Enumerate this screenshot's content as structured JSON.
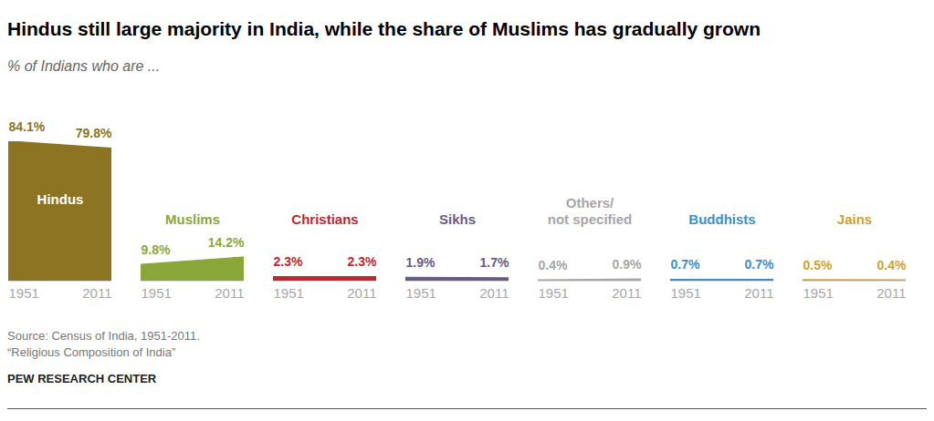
{
  "chart_data": {
    "type": "area",
    "title": "Hindus still large majority in India, while the share of Muslims has gradually grown",
    "subtitle": "% of Indians who are ...",
    "source": "Source: Census of India, 1951-2011.\n“Religious Composition of India”",
    "credit": "PEW RESEARCH CENTER",
    "x": [
      1951,
      2011
    ],
    "xlim": [
      1951,
      2011
    ],
    "xticks": [
      1951,
      2011
    ],
    "ylim": [
      0,
      84.1
    ],
    "yticks": [
      0
    ],
    "tick_labels": "x",
    "grid": false,
    "data_labels": true,
    "series": [
      {
        "name": "Hindus",
        "color": "#8c7423",
        "values": [
          84.1,
          79.8
        ],
        "value_labels": [
          "84.1%",
          "79.8%"
        ]
      },
      {
        "name": "Muslims",
        "color": "#8aa83a",
        "values": [
          9.8,
          14.2
        ],
        "value_labels": [
          "9.8%",
          "14.2%"
        ]
      },
      {
        "name": "Christians",
        "color": "#c1272d",
        "values": [
          2.3,
          2.3
        ],
        "value_labels": [
          "2.3%",
          "2.3%"
        ]
      },
      {
        "name": "Sikhs",
        "color": "#6a5a88",
        "values": [
          1.9,
          1.7
        ],
        "value_labels": [
          "1.9%",
          "1.7%"
        ]
      },
      {
        "name": "Others/\nnot specified",
        "color": "#a6a6a6",
        "values": [
          0.4,
          0.9
        ],
        "value_labels": [
          "0.4%",
          "0.9%"
        ]
      },
      {
        "name": "Buddhists",
        "color": "#3a8fc6",
        "values": [
          0.7,
          0.7
        ],
        "value_labels": [
          "0.7%",
          "0.7%"
        ]
      },
      {
        "name": "Jains",
        "color": "#d3a12a",
        "values": [
          0.5,
          0.4
        ],
        "value_labels": [
          "0.5%",
          "0.4%"
        ]
      }
    ]
  }
}
